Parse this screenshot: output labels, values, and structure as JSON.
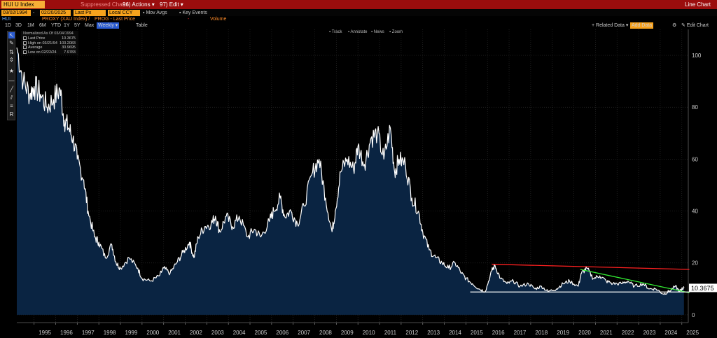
{
  "header": {
    "ticker": "HUI U Index",
    "suppressed": "Suppressed Charts",
    "actions": "96) Actions ▾",
    "edit": "97) Edit ▾",
    "chart_type": "Line Chart"
  },
  "toolbar": {
    "start_date": "03/02/1994",
    "end_date": "02/20/2025",
    "field": "Last Px",
    "currency": "Local CCY",
    "mov_avgs": "Mov Avgs",
    "key_events": "Key Events"
  },
  "study_row": {
    "security": "HUI",
    "prices_label": "PROXY (XAU Index) /",
    "price_label": "PROG - Last Price",
    "volume_label": "Volume"
  },
  "periods": [
    "1D",
    "3D",
    "1M",
    "6M",
    "YTD",
    "1Y",
    "5Y",
    "Max",
    "Weekly ▾",
    "Table"
  ],
  "selected_period": "Weekly ▾",
  "center_tools": [
    "Track",
    "Annotate",
    "News",
    "Zoom"
  ],
  "right_tools": {
    "related": "+ Related Data ▾",
    "add_data": "Add Data",
    "edit_chart": "Edit Chart",
    "settings_icon": "gear-icon"
  },
  "legend": {
    "heading": "Normalized As Of 03/04/1994",
    "rows": [
      {
        "label": "Last Price",
        "value": "10.3675"
      },
      {
        "label": "High on 03/21/94",
        "value": "103.2083"
      },
      {
        "label": "Average",
        "value": "30.9695"
      },
      {
        "label": "Low on 02/22/24",
        "value": "7.9783"
      }
    ]
  },
  "last_value_label": "10.3675",
  "chart_data": {
    "type": "area",
    "x_tick_labels": [
      "1995",
      "1996",
      "1997",
      "1998",
      "1999",
      "2000",
      "2001",
      "2002",
      "2003",
      "2004",
      "2005",
      "2006",
      "2007",
      "2008",
      "2009",
      "2010",
      "2011",
      "2012",
      "2013",
      "2014",
      "2015",
      "2016",
      "2017",
      "2018",
      "2019",
      "2020",
      "2021",
      "2022",
      "2023",
      "2024",
      "2025"
    ],
    "y_ticks": [
      0,
      20,
      40,
      60,
      80,
      100
    ],
    "ylim": [
      -3,
      110
    ],
    "xlim": [
      1994.2,
      2025.3
    ],
    "series": [
      {
        "x": [
          1994.2,
          1994.5,
          1994.8,
          1995.0,
          1995.3,
          1995.6,
          1995.9,
          1996.2,
          1996.4,
          1996.6,
          1996.8,
          1997.0,
          1997.3,
          1997.5,
          1997.8,
          1998.0,
          1998.3,
          1998.6,
          1998.8,
          1999.0,
          1999.4,
          1999.8,
          2000.0,
          2000.4,
          2000.8,
          2001.0,
          2001.3,
          2001.6,
          2001.9,
          2002.2,
          2002.4,
          2002.6,
          2002.9,
          2003.2,
          2003.4,
          2003.6,
          2003.9,
          2004.2,
          2004.5,
          2004.9,
          2005.2,
          2005.5,
          2005.9,
          2006.1,
          2006.4,
          2006.6,
          2006.9,
          2007.2,
          2007.5,
          2007.9,
          2008.2,
          2008.5,
          2008.8,
          2008.95,
          2009.2,
          2009.5,
          2009.8,
          2010.0,
          2010.3,
          2010.6,
          2010.9,
          2011.2,
          2011.5,
          2011.7,
          2011.9,
          2012.2,
          2012.5,
          2012.8,
          2013.0,
          2013.3,
          2013.6,
          2013.9,
          2014.2,
          2014.5,
          2014.8,
          2015.0,
          2015.3,
          2015.6,
          2015.9,
          2016.2,
          2016.35,
          2016.6,
          2016.9,
          2017.2,
          2017.5,
          2017.9,
          2018.2,
          2018.5,
          2018.8,
          2019.2,
          2019.5,
          2019.8,
          2020.2,
          2020.35,
          2020.6,
          2020.9,
          2021.2,
          2021.5,
          2021.8,
          2022.2,
          2022.5,
          2022.8,
          2023.2,
          2023.5,
          2023.8,
          2024.15,
          2024.4,
          2024.7,
          2024.9,
          2025.0,
          2025.1
        ],
        "y": [
          103,
          90,
          85,
          88,
          85,
          80,
          83,
          87,
          75,
          72,
          68,
          60,
          52,
          40,
          30,
          28,
          22,
          27,
          20,
          18,
          22,
          18,
          14,
          13,
          15,
          18,
          16,
          20,
          24,
          28,
          22,
          30,
          34,
          35,
          38,
          32,
          38,
          34,
          38,
          30,
          33,
          30,
          36,
          40,
          45,
          38,
          40,
          35,
          42,
          55,
          60,
          45,
          32,
          40,
          55,
          60,
          56,
          65,
          58,
          68,
          70,
          60,
          72,
          55,
          60,
          58,
          45,
          40,
          32,
          25,
          22,
          20,
          18,
          20,
          16,
          14,
          12,
          10,
          9,
          17,
          19,
          14,
          12,
          13,
          11,
          12,
          10,
          11,
          9,
          10,
          12,
          13,
          11,
          16,
          18,
          14,
          15,
          13,
          12,
          12,
          13,
          11,
          12,
          10,
          10,
          8,
          9,
          11,
          9,
          10,
          10.37
        ]
      }
    ],
    "trendlines": [
      {
        "color": "#ff2020",
        "x": [
          2016.2,
          2025.35
        ],
        "y": [
          19.5,
          17.5
        ]
      },
      {
        "color": "#33ee33",
        "x": [
          2020.3,
          2025.35
        ],
        "y": [
          17.5,
          8.5
        ]
      },
      {
        "color": "#ffffff",
        "x": [
          2015.2,
          2025.35
        ],
        "y": [
          8.8,
          8.8
        ]
      }
    ],
    "colors": {
      "area": "#0a2442",
      "line": "#ffffff",
      "grid": "#2a2a2a"
    }
  }
}
